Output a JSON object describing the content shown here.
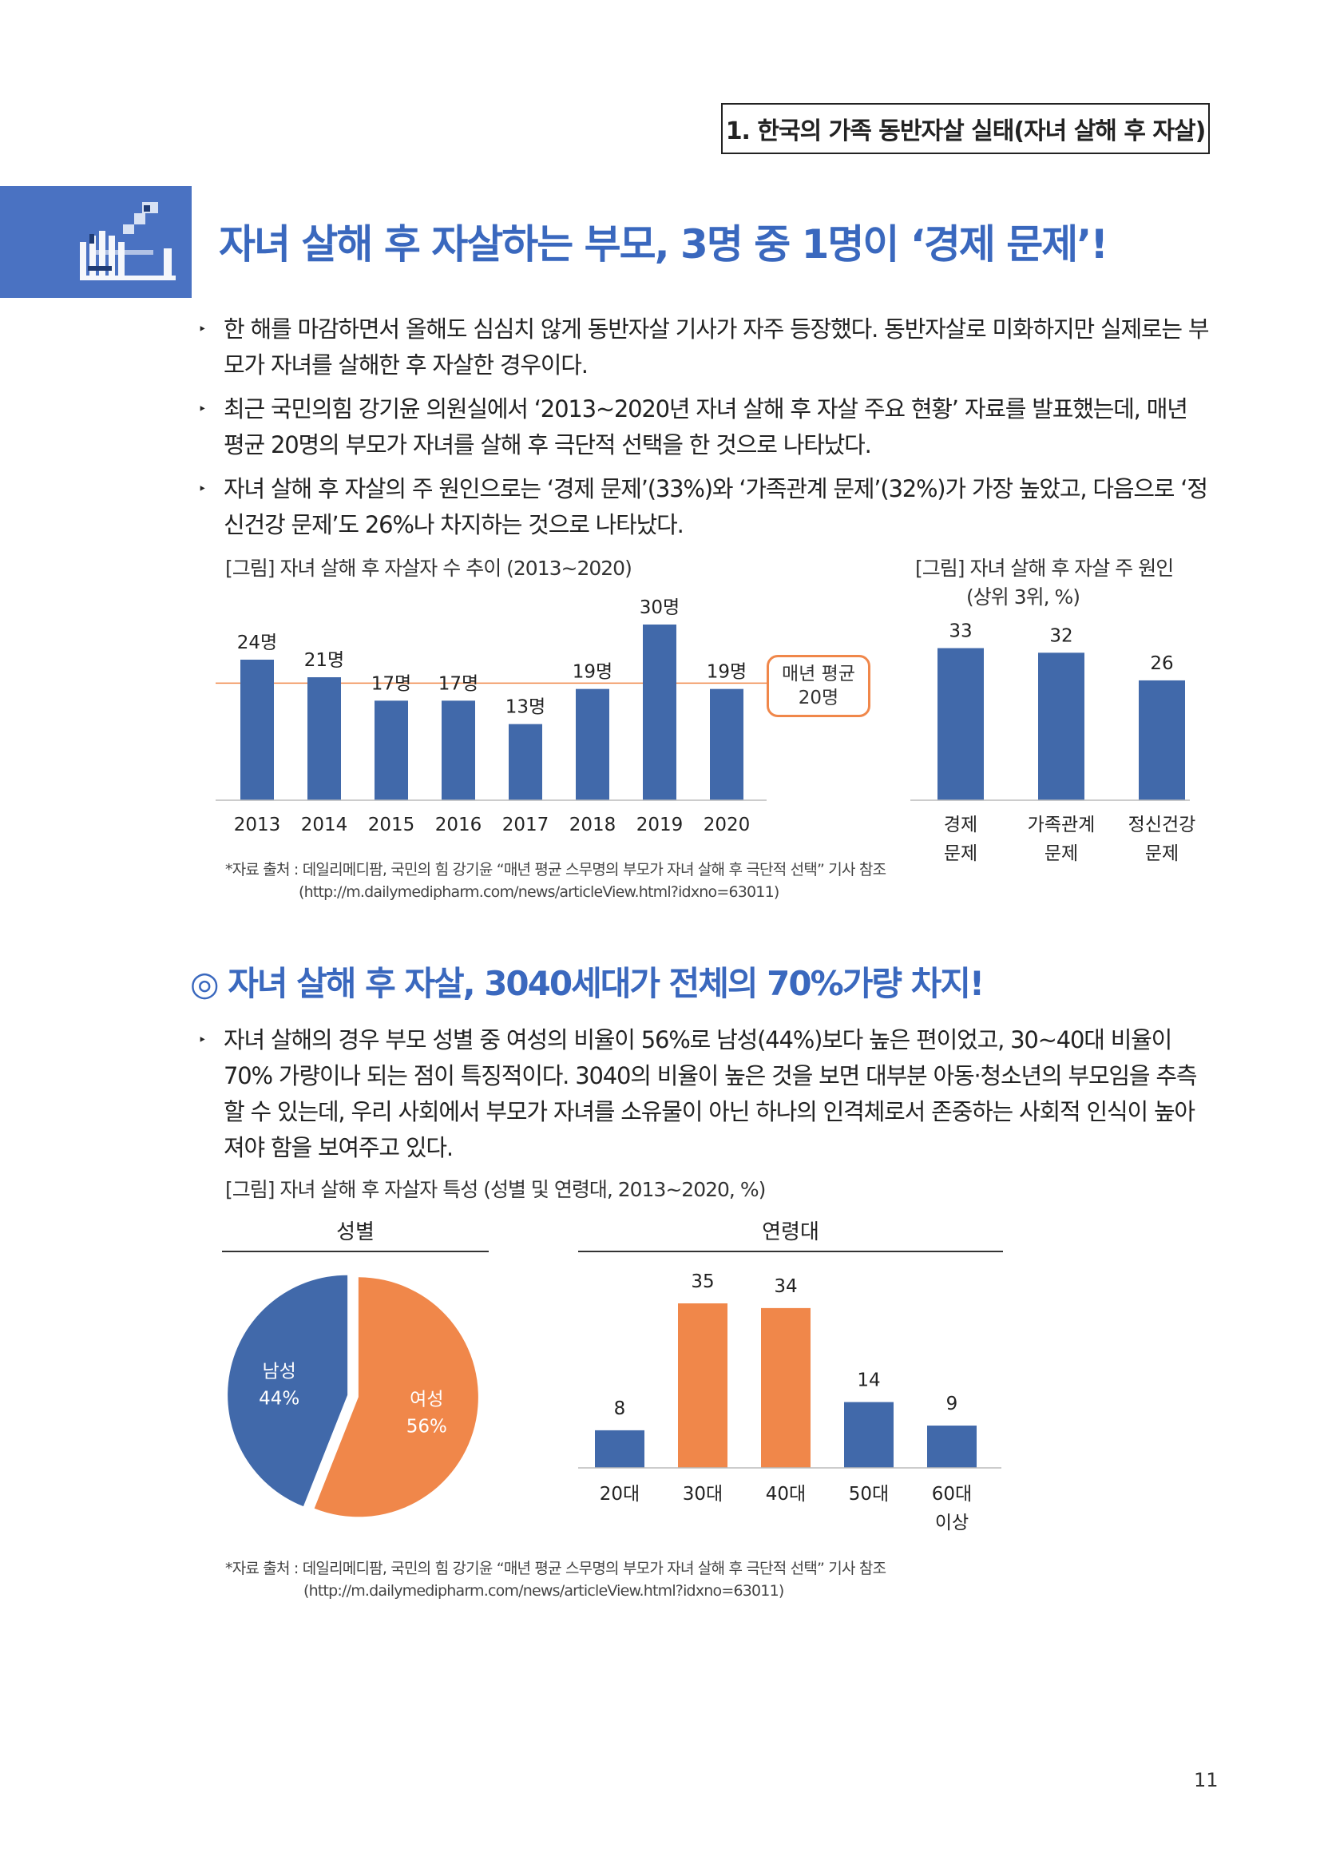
{
  "section_label": "1. 한국의 가족 동반자살 실태(자녀 살해 후 자살)",
  "main_title": "자녀 살해 후 자살하는 부모, 3명 중 1명이 ‘경제 문제’!",
  "bullets_top": [
    "한 해를 마감하면서 올해도 심심치 않게 동반자살 기사가 자주 등장했다. 동반자살로 미화하지만 실제로는 부모가 자녀를 살해한 후 자살한 경우이다.",
    "최근 국민의힘 강기윤 의원실에서 ‘2013~2020년 자녀 살해 후 자살 주요 현황’ 자료를 발표했는데, 매년 평균 20명의 부모가 자녀를 살해 후 극단적 선택을 한 것으로 나타났다.",
    "자녀 살해 후 자살의 주 원인으로는 ‘경제 문제’(33%)와 ‘가족관계 문제’(32%)가 가장 높았고, 다음으로 ‘정신건강 문제’도 26%나 차지하는 것으로 나타났다."
  ],
  "bullet_marker": "‣",
  "fig1": {
    "caption": "[그림] 자녀 살해 후 자살자 수 추이 (2013~2020)",
    "avg_label_line1": "매년 평균",
    "avg_label_line2": "20명"
  },
  "fig2": {
    "caption_line1": "[그림] 자녀 살해 후 자살 주 원인",
    "caption_line2": "(상위 3위, %)"
  },
  "source1": {
    "line1": "*자료 출처 : 데일리메디팜, 국민의 힘 강기윤 “매년 평균 스무명의 부모가 자녀 살해 후 극단적 선택” 기사 참조",
    "line2": "(http://m.dailymedipharm.com/news/articleView.html?idxno=63011)"
  },
  "subsection_title": "◎ 자녀 살해 후 자살, 3040세대가 전체의 70%가량 차지!",
  "bullet_bottom": "자녀 살해의 경우 부모 성별 중 여성의 비율이 56%로 남성(44%)보다 높은 편이었고, 30~40대 비율이 70% 가량이나 되는 점이 특징적이다. 3040의 비율이 높은 것을 보면 대부분 아동·청소년의 부모임을 추측할 수 있는데, 우리 사회에서 부모가 자녀를 소유물이 아닌 하나의 인격체로서 존중하는 사회적 인식이 높아져야 함을 보여주고 있다.",
  "fig3": {
    "caption": "[그림] 자녀 살해 후 자살자 특성 (성별 및 연령대, 2013~2020, %)",
    "gender_title": "성별",
    "age_title": "연령대"
  },
  "source2": {
    "line1": "*자료 출처 : 데일리메디팜, 국민의 힘 강기윤 “매년 평균 스무명의 부모가 자녀 살해 후 극단적 선택” 기사 참조",
    "line2": "(http://m.dailymedipharm.com/news/articleView.html?idxno=63011)"
  },
  "page_number": "11",
  "colors": {
    "blue": "#4169aa",
    "orange": "#f0874a",
    "title_blue": "#3a68be"
  },
  "chart_data": [
    {
      "type": "bar",
      "categories": [
        "2013",
        "2014",
        "2015",
        "2016",
        "2017",
        "2018",
        "2019",
        "2020"
      ],
      "values": [
        24,
        21,
        17,
        17,
        13,
        19,
        30,
        19
      ],
      "value_labels": [
        "24명",
        "21명",
        "17명",
        "17명",
        "13명",
        "19명",
        "30명",
        "19명"
      ],
      "reference_line": 20,
      "ylim": [
        0,
        30
      ]
    },
    {
      "type": "bar",
      "categories": [
        "경제 문제",
        "가족관계 문제",
        "정신건강 문제"
      ],
      "category_lines": [
        [
          "경제",
          "문제"
        ],
        [
          "가족관계",
          "문제"
        ],
        [
          "정신건강",
          "문제"
        ]
      ],
      "values": [
        33,
        32,
        26
      ],
      "ylim": [
        0,
        35
      ]
    },
    {
      "type": "pie",
      "labels": [
        "남성",
        "여성"
      ],
      "values": [
        44,
        56
      ],
      "value_labels": [
        "44%",
        "56%"
      ],
      "colors": [
        "#4169aa",
        "#f0874a"
      ]
    },
    {
      "type": "bar",
      "categories": [
        "20대",
        "30대",
        "40대",
        "50대",
        "60대 이상"
      ],
      "category_lines": [
        [
          "20대"
        ],
        [
          "30대"
        ],
        [
          "40대"
        ],
        [
          "50대"
        ],
        [
          "60대",
          "이상"
        ]
      ],
      "values": [
        8,
        35,
        34,
        14,
        9
      ],
      "colors": [
        "#4169aa",
        "#f0874a",
        "#f0874a",
        "#4169aa",
        "#4169aa"
      ],
      "ylim": [
        0,
        35
      ]
    }
  ]
}
